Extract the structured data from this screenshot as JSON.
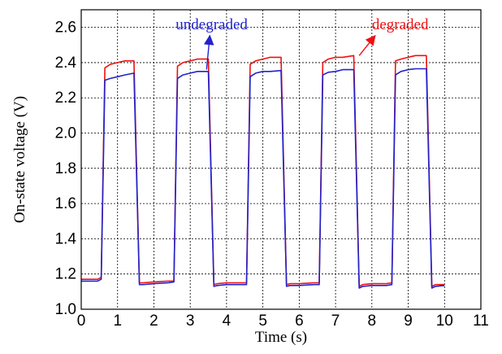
{
  "chart_data": {
    "type": "line",
    "xlabel": "Time (s)",
    "ylabel": "On-state voltage (V)",
    "xlim": [
      0,
      11
    ],
    "ylim": [
      1.0,
      2.7
    ],
    "grid": true,
    "x_ticks": [
      0,
      1,
      2,
      3,
      4,
      5,
      6,
      7,
      8,
      9,
      10,
      11
    ],
    "y_ticks": [
      1.0,
      1.2,
      1.4,
      1.6,
      1.8,
      2.0,
      2.2,
      2.4,
      2.6
    ],
    "x_tick_labels": [
      "0",
      "1",
      "2",
      "3",
      "4",
      "5",
      "6",
      "7",
      "8",
      "9",
      "10",
      "11"
    ],
    "y_tick_labels": [
      "1.0",
      "1.2",
      "1.4",
      "1.6",
      "1.8",
      "2.0",
      "2.2",
      "2.4",
      "2.6"
    ],
    "series": [
      {
        "name": "degraded",
        "color": "#ee1111",
        "x": [
          0,
          0.45,
          0.55,
          0.65,
          0.8,
          1.0,
          1.2,
          1.45,
          1.6,
          1.7,
          2.0,
          2.4,
          2.55,
          2.65,
          2.8,
          3.0,
          3.2,
          3.5,
          3.65,
          3.75,
          4.0,
          4.4,
          4.55,
          4.65,
          4.8,
          5.0,
          5.2,
          5.5,
          5.65,
          5.75,
          6.0,
          6.4,
          6.55,
          6.65,
          6.8,
          7.0,
          7.2,
          7.5,
          7.65,
          7.75,
          8.0,
          8.4,
          8.55,
          8.65,
          8.8,
          9.0,
          9.2,
          9.5,
          9.65,
          9.75,
          10.0
        ],
        "y": [
          1.17,
          1.17,
          1.18,
          2.37,
          2.39,
          2.4,
          2.41,
          2.41,
          1.15,
          1.15,
          1.155,
          1.16,
          1.16,
          2.38,
          2.4,
          2.41,
          2.42,
          2.42,
          1.14,
          1.145,
          1.15,
          1.15,
          1.15,
          2.39,
          2.41,
          2.42,
          2.43,
          2.43,
          1.14,
          1.145,
          1.145,
          1.15,
          1.15,
          2.4,
          2.42,
          2.43,
          2.43,
          2.44,
          1.13,
          1.14,
          1.145,
          1.145,
          1.15,
          2.41,
          2.42,
          2.43,
          2.44,
          2.44,
          1.13,
          1.14,
          1.14
        ]
      },
      {
        "name": "undegraded",
        "color": "#2222cc",
        "x": [
          0,
          0.45,
          0.55,
          0.65,
          0.8,
          1.0,
          1.2,
          1.45,
          1.6,
          1.7,
          2.0,
          2.4,
          2.55,
          2.65,
          2.8,
          3.0,
          3.2,
          3.5,
          3.65,
          3.75,
          4.0,
          4.4,
          4.55,
          4.65,
          4.8,
          5.0,
          5.2,
          5.5,
          5.65,
          5.75,
          6.0,
          6.4,
          6.55,
          6.65,
          6.8,
          7.0,
          7.2,
          7.5,
          7.65,
          7.75,
          8.0,
          8.4,
          8.55,
          8.65,
          8.8,
          9.0,
          9.2,
          9.5,
          9.65,
          9.75,
          10.0
        ],
        "y": [
          1.16,
          1.16,
          1.17,
          2.3,
          2.31,
          2.32,
          2.33,
          2.34,
          1.14,
          1.14,
          1.145,
          1.15,
          1.155,
          2.31,
          2.33,
          2.34,
          2.35,
          2.35,
          1.13,
          1.135,
          1.14,
          1.14,
          1.14,
          2.32,
          2.34,
          2.35,
          2.35,
          2.355,
          1.13,
          1.135,
          1.135,
          1.14,
          1.14,
          2.33,
          2.345,
          2.35,
          2.36,
          2.36,
          1.12,
          1.13,
          1.135,
          1.135,
          1.14,
          2.33,
          2.35,
          2.36,
          2.365,
          2.365,
          1.12,
          1.13,
          1.135
        ]
      }
    ],
    "annotations": [
      {
        "text": "undegraded",
        "color": "#2222cc",
        "x": 2.6,
        "y": 2.59,
        "arrow_to": [
          3.45,
          2.36
        ]
      },
      {
        "text": "degraded",
        "color": "#ee1111",
        "x": 8.0,
        "y": 2.59,
        "arrow_to": [
          7.65,
          2.44
        ]
      }
    ]
  }
}
